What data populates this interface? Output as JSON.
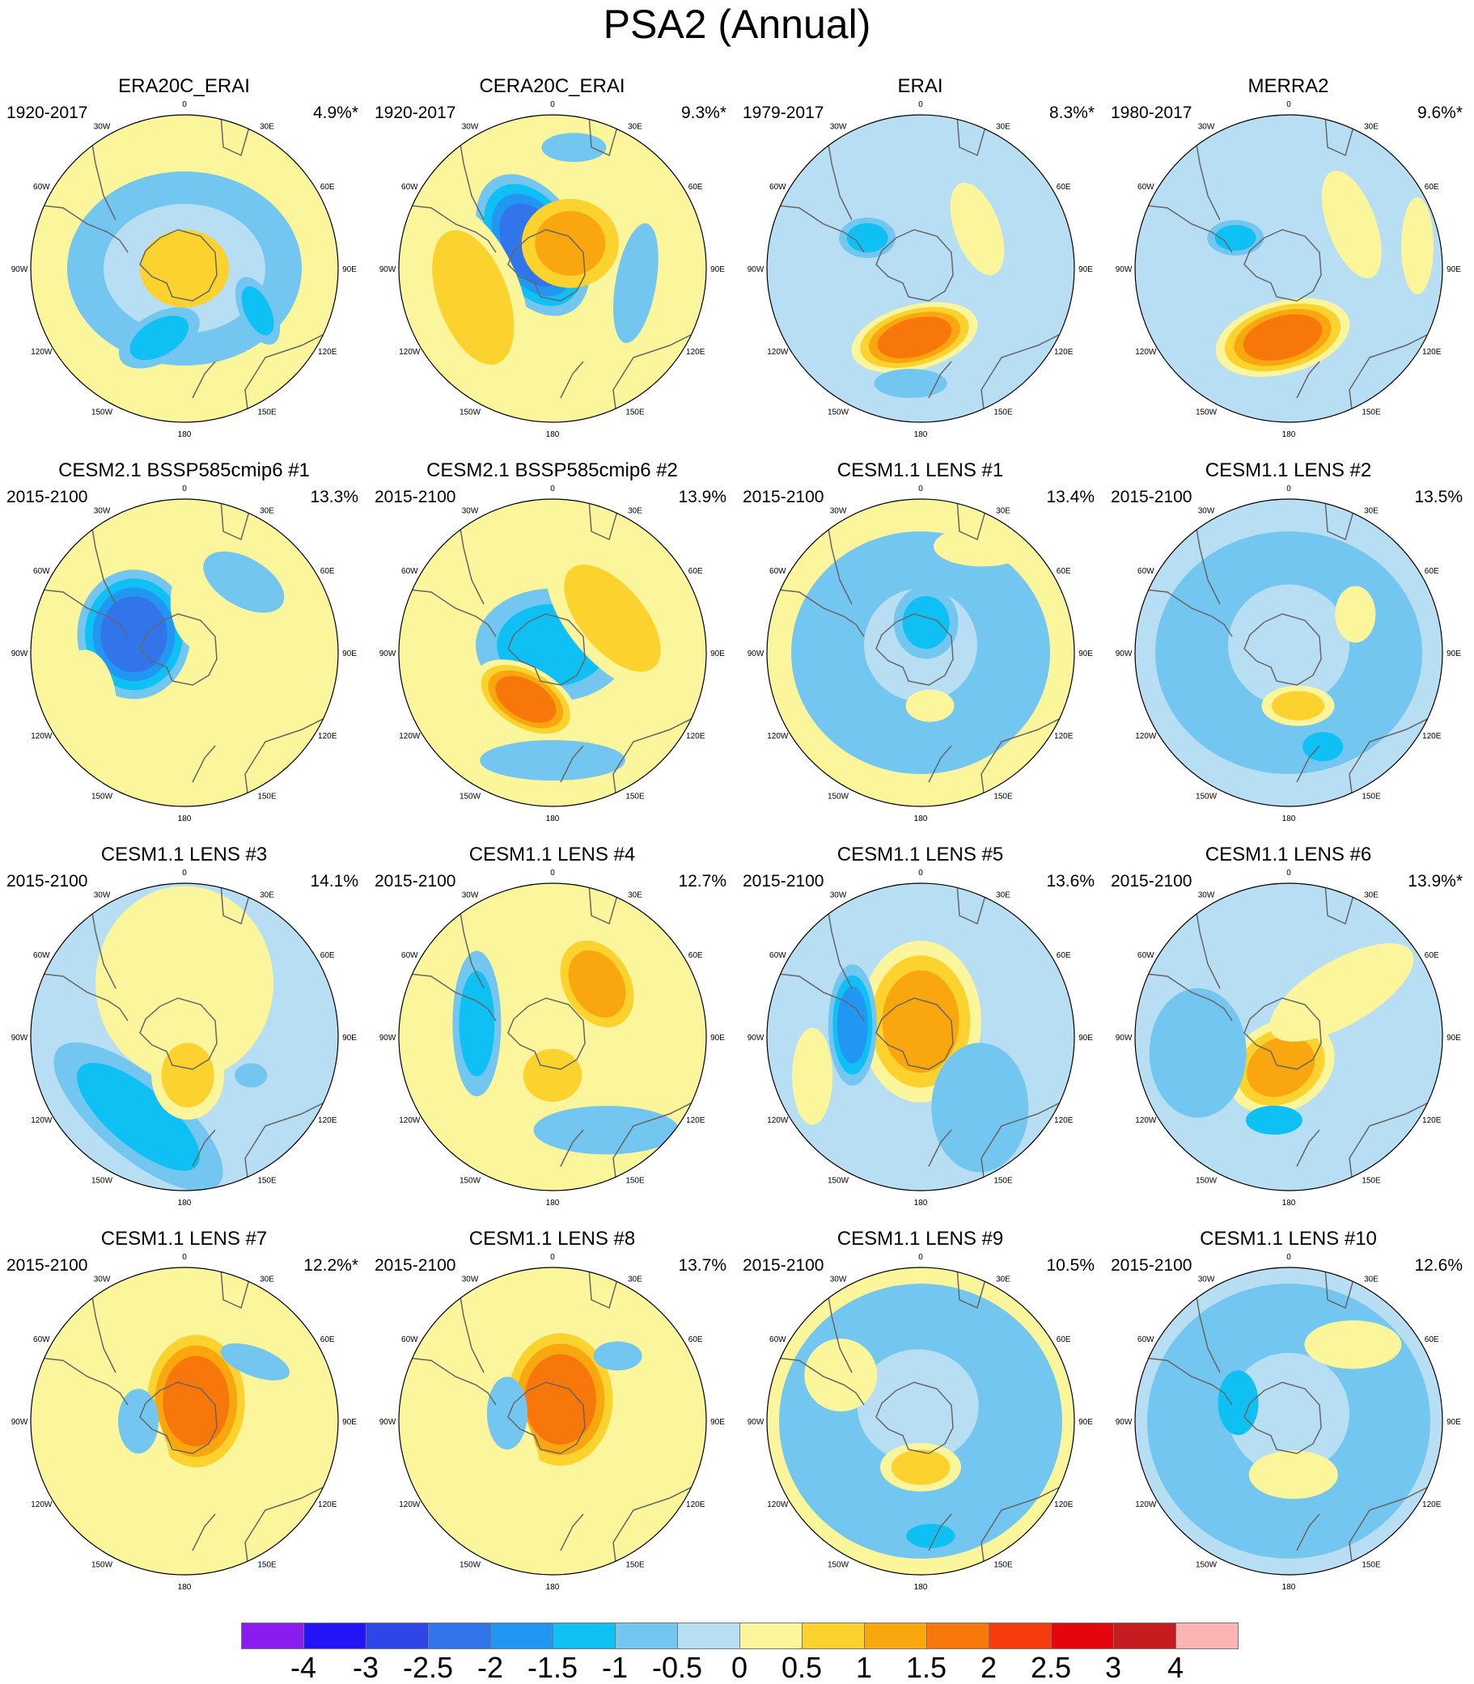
{
  "title": "PSA2 (Annual)",
  "panels": [
    {
      "title": "ERA20C_ERAI",
      "period": "1920-2017",
      "pct": "4.9%*"
    },
    {
      "title": "CERA20C_ERAI",
      "period": "1920-2017",
      "pct": "9.3%*"
    },
    {
      "title": "ERAI",
      "period": "1979-2017",
      "pct": "8.3%*"
    },
    {
      "title": "MERRA2",
      "period": "1980-2017",
      "pct": "9.6%*"
    },
    {
      "title": "CESM2.1 BSSP585cmip6 #1",
      "period": "2015-2100",
      "pct": "13.3%"
    },
    {
      "title": "CESM2.1 BSSP585cmip6 #2",
      "period": "2015-2100",
      "pct": "13.9%"
    },
    {
      "title": "CESM1.1 LENS #1",
      "period": "2015-2100",
      "pct": "13.4%"
    },
    {
      "title": "CESM1.1 LENS #2",
      "period": "2015-2100",
      "pct": "13.5%"
    },
    {
      "title": "CESM1.1 LENS #3",
      "period": "2015-2100",
      "pct": "14.1%"
    },
    {
      "title": "CESM1.1 LENS #4",
      "period": "2015-2100",
      "pct": "12.7%"
    },
    {
      "title": "CESM1.1 LENS #5",
      "period": "2015-2100",
      "pct": "13.6%"
    },
    {
      "title": "CESM1.1 LENS #6",
      "period": "2015-2100",
      "pct": "13.9%*"
    },
    {
      "title": "CESM1.1 LENS #7",
      "period": "2015-2100",
      "pct": "12.2%*"
    },
    {
      "title": "CESM1.1 LENS #8",
      "period": "2015-2100",
      "pct": "13.7%"
    },
    {
      "title": "CESM1.1 LENS #9",
      "period": "2015-2100",
      "pct": "10.5%"
    },
    {
      "title": "CESM1.1 LENS #10",
      "period": "2015-2100",
      "pct": "12.6%"
    }
  ],
  "lon_labels": [
    "0",
    "30E",
    "60E",
    "90E",
    "120E",
    "150E",
    "180",
    "150W",
    "120W",
    "90W",
    "60W",
    "30W"
  ],
  "colorbar": {
    "labels": [
      "-4",
      "-3",
      "-2.5",
      "-2",
      "-1.5",
      "-1",
      "-0.5",
      "0",
      "0.5",
      "1",
      "1.5",
      "2",
      "2.5",
      "3",
      "4"
    ],
    "colors": [
      "#8a1cf0",
      "#2414f5",
      "#2e46e8",
      "#3275ea",
      "#2196f3",
      "#0fc0f5",
      "#72c6ef",
      "#b7def3",
      "#fbf59b",
      "#fbd22e",
      "#f9a60f",
      "#f7770a",
      "#f73b0d",
      "#e5050c",
      "#c61b1f",
      "#fdb4b5"
    ]
  }
}
